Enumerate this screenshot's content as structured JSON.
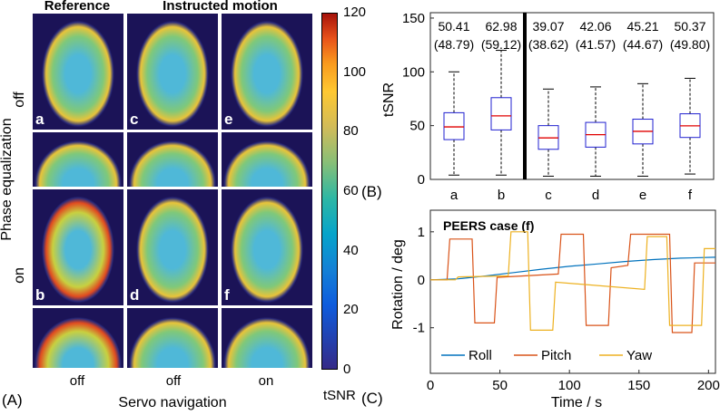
{
  "panel_a": {
    "panel_label": "(A)",
    "col_headers": [
      "Reference",
      "Instructed motion"
    ],
    "row_axis_title": "Phase equalization",
    "row_labels": [
      "off",
      "on"
    ],
    "col_axis_title": "Servo navigation",
    "col_labels": [
      "off",
      "off",
      "on"
    ],
    "tile_labels": [
      "a",
      "c",
      "e",
      "b",
      "d",
      "f"
    ],
    "colorbar": {
      "label": "tSNR",
      "ticks": [
        "0",
        "20",
        "40",
        "60",
        "80",
        "100",
        "120"
      ]
    }
  },
  "chart_data": [
    {
      "type": "box",
      "panel_label": "(B)",
      "ylabel": "tSNR",
      "categories": [
        "a",
        "b",
        "c",
        "d",
        "e",
        "f"
      ],
      "ylim": [
        0,
        155
      ],
      "yticks": [
        0,
        50,
        100,
        150
      ],
      "mean_labels": [
        "50.41",
        "62.98",
        "39.07",
        "42.06",
        "45.21",
        "50.37"
      ],
      "median_labels": [
        "(48.79)",
        "(59.12)",
        "(38.62)",
        "(41.57)",
        "(44.67)",
        "(49.80)"
      ],
      "boxes": [
        {
          "whisker_low": 4,
          "q1": 37,
          "median": 48.8,
          "q3": 62,
          "whisker_high": 100
        },
        {
          "whisker_low": 4,
          "q1": 46,
          "median": 59.1,
          "q3": 76,
          "whisker_high": 120
        },
        {
          "whisker_low": 3,
          "q1": 28,
          "median": 38.6,
          "q3": 50,
          "whisker_high": 84
        },
        {
          "whisker_low": 3,
          "q1": 30,
          "median": 41.6,
          "q3": 53,
          "whisker_high": 86
        },
        {
          "whisker_low": 3,
          "q1": 33,
          "median": 44.7,
          "q3": 56,
          "whisker_high": 89
        },
        {
          "whisker_low": 5,
          "q1": 39,
          "median": 49.8,
          "q3": 61,
          "whisker_high": 94
        }
      ],
      "separator_after_index": 1
    },
    {
      "type": "line",
      "panel_label": "(C)",
      "title": "PEERS case (f)",
      "xlabel": "Time / s",
      "ylabel": "Rotation / deg",
      "xlim": [
        0,
        205
      ],
      "ylim": [
        -1.95,
        1.45
      ],
      "xticks": [
        0,
        50,
        100,
        150,
        200
      ],
      "yticks": [
        -1,
        0,
        1
      ],
      "legend_position": "bottom",
      "series": [
        {
          "name": "Roll",
          "color": "#0072bd",
          "x": [
            0,
            20,
            40,
            60,
            80,
            100,
            120,
            140,
            160,
            180,
            205
          ],
          "y": [
            0,
            0.02,
            0.08,
            0.15,
            0.22,
            0.28,
            0.33,
            0.38,
            0.42,
            0.45,
            0.47
          ]
        },
        {
          "name": "Pitch",
          "color": "#d95319",
          "x": [
            0,
            12,
            14,
            30,
            32,
            46,
            48,
            92,
            94,
            110,
            112,
            128,
            130,
            142,
            144,
            172,
            174,
            188,
            190,
            205
          ],
          "y": [
            0,
            0,
            0.85,
            0.85,
            -0.9,
            -0.9,
            0.05,
            0.12,
            0.95,
            0.95,
            -0.95,
            -0.95,
            0.25,
            0.3,
            0.95,
            0.95,
            -1.1,
            -1.1,
            0.35,
            0.35
          ]
        },
        {
          "name": "Yaw",
          "color": "#edb120",
          "x": [
            0,
            18,
            20,
            56,
            58,
            70,
            72,
            88,
            90,
            154,
            156,
            170,
            172,
            195,
            197,
            205
          ],
          "y": [
            0,
            0,
            0.06,
            0.08,
            1.0,
            1.0,
            -1.05,
            -1.05,
            -0.05,
            -0.2,
            0.9,
            0.9,
            -0.95,
            -0.95,
            0.65,
            0.65
          ]
        }
      ]
    }
  ]
}
